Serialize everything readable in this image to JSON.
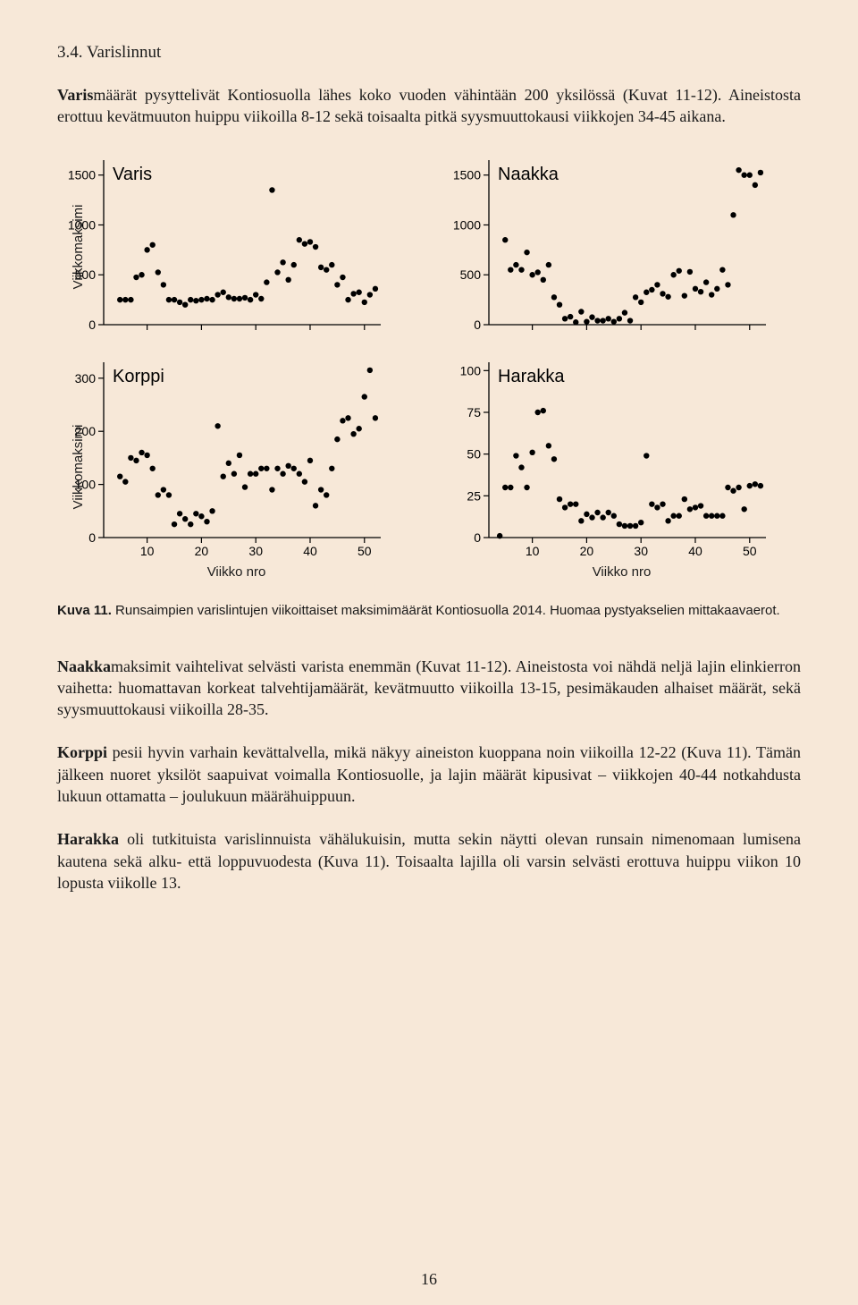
{
  "section_heading": "3.4. Varislinnut",
  "para1": "Varismäärät pysyttelivät Kontiosuolla lähes koko vuoden vähintään 200 yksilössä (Kuvat 11-12). Aineistosta erottuu kevätmuuton huippu viikoilla 8-12 sekä toisaalta pitkä syysmuuttokausi viikkojen 34-45 aikana.",
  "caption_bold": "Kuva 11.",
  "caption_rest": " Runsaimpien varislintujen viikoittaiset maksimimäärät Kontiosuolla 2014. Huomaa pystyakselien mittakaavaerot.",
  "para2": "Naakkamaksimit vaihtelivat selvästi varista enemmän (Kuvat 11-12). Aineistosta voi nähdä neljä lajin elinkierron vaihetta: huomattavan korkeat talvehtijamäärät, kevätmuutto viikoilla 13-15, pesimäkauden alhaiset määrät, sekä syysmuuttokausi viikoilla 28-35.",
  "para3": "Korppi pesii hyvin varhain kevättalvella, mikä näkyy aineiston kuoppana noin viikoilla 12-22 (Kuva 11). Tämän jälkeen nuoret yksilöt saapuivat voimalla Kontiosuolle, ja lajin määrät kipusivat – viikkojen 40-44 notkahdusta lukuun ottamatta – joulukuun määrähuippuun.",
  "para4": "Harakka oli tutkituista varislinnuista vähälukuisin, mutta sekin näytti olevan runsain nimenomaan lumisena kautena sekä alku- että loppuvuodesta (Kuva 11). Toisaalta lajilla oli varsin selvästi erottuva huippu viikon 10 lopusta viikolle 13.",
  "page_number": "16",
  "axis_y_label": "Viikkomaksimi",
  "axis_x_label": "Viikko nro",
  "charts": {
    "common": {
      "point_color": "#000000",
      "axis_color": "#000000",
      "tick_font": 14,
      "title_font": 20,
      "x_ticks": [
        10,
        20,
        30,
        40,
        50
      ],
      "xlim": [
        2,
        53
      ],
      "marker_radius": 3.2
    },
    "varis": {
      "title": "Varis",
      "y_ticks": [
        0,
        500,
        1000,
        1500
      ],
      "ylim": [
        0,
        1650
      ],
      "points": [
        [
          5,
          250
        ],
        [
          6,
          250
        ],
        [
          7,
          250
        ],
        [
          8,
          475
        ],
        [
          9,
          500
        ],
        [
          10,
          750
        ],
        [
          11,
          800
        ],
        [
          12,
          525
        ],
        [
          13,
          400
        ],
        [
          14,
          250
        ],
        [
          15,
          250
        ],
        [
          16,
          225
        ],
        [
          17,
          200
        ],
        [
          18,
          250
        ],
        [
          19,
          240
        ],
        [
          20,
          250
        ],
        [
          21,
          260
        ],
        [
          22,
          250
        ],
        [
          23,
          300
        ],
        [
          24,
          325
        ],
        [
          25,
          275
        ],
        [
          26,
          260
        ],
        [
          27,
          260
        ],
        [
          28,
          270
        ],
        [
          29,
          250
        ],
        [
          30,
          300
        ],
        [
          31,
          260
        ],
        [
          32,
          425
        ],
        [
          33,
          1350
        ],
        [
          34,
          525
        ],
        [
          35,
          625
        ],
        [
          36,
          450
        ],
        [
          37,
          600
        ],
        [
          38,
          850
        ],
        [
          39,
          810
        ],
        [
          40,
          830
        ],
        [
          41,
          780
        ],
        [
          42,
          575
        ],
        [
          43,
          550
        ],
        [
          44,
          600
        ],
        [
          45,
          400
        ],
        [
          46,
          475
        ],
        [
          47,
          250
        ],
        [
          48,
          310
        ],
        [
          49,
          325
        ],
        [
          50,
          225
        ],
        [
          51,
          300
        ],
        [
          52,
          360
        ]
      ]
    },
    "naakka": {
      "title": "Naakka",
      "y_ticks": [
        0,
        500,
        1000,
        1500
      ],
      "ylim": [
        0,
        1650
      ],
      "points": [
        [
          5,
          850
        ],
        [
          6,
          550
        ],
        [
          7,
          600
        ],
        [
          8,
          550
        ],
        [
          9,
          725
        ],
        [
          10,
          500
        ],
        [
          11,
          525
        ],
        [
          12,
          450
        ],
        [
          13,
          600
        ],
        [
          14,
          275
        ],
        [
          15,
          200
        ],
        [
          16,
          60
        ],
        [
          17,
          80
        ],
        [
          18,
          25
        ],
        [
          19,
          130
        ],
        [
          20,
          30
        ],
        [
          21,
          75
        ],
        [
          22,
          40
        ],
        [
          23,
          40
        ],
        [
          24,
          60
        ],
        [
          25,
          30
        ],
        [
          26,
          60
        ],
        [
          27,
          120
        ],
        [
          28,
          40
        ],
        [
          29,
          275
        ],
        [
          30,
          225
        ],
        [
          31,
          325
        ],
        [
          32,
          350
        ],
        [
          33,
          400
        ],
        [
          34,
          310
        ],
        [
          35,
          280
        ],
        [
          36,
          500
        ],
        [
          37,
          540
        ],
        [
          38,
          290
        ],
        [
          39,
          530
        ],
        [
          40,
          360
        ],
        [
          41,
          330
        ],
        [
          42,
          425
        ],
        [
          43,
          300
        ],
        [
          44,
          360
        ],
        [
          45,
          550
        ],
        [
          46,
          400
        ],
        [
          47,
          1100
        ],
        [
          48,
          1550
        ],
        [
          49,
          1500
        ],
        [
          50,
          1500
        ],
        [
          51,
          1400
        ],
        [
          52,
          1525
        ]
      ]
    },
    "korppi": {
      "title": "Korppi",
      "y_ticks": [
        0,
        100,
        200,
        300
      ],
      "ylim": [
        0,
        330
      ],
      "points": [
        [
          5,
          115
        ],
        [
          6,
          105
        ],
        [
          7,
          150
        ],
        [
          8,
          145
        ],
        [
          9,
          160
        ],
        [
          10,
          155
        ],
        [
          11,
          130
        ],
        [
          12,
          80
        ],
        [
          13,
          90
        ],
        [
          14,
          80
        ],
        [
          15,
          25
        ],
        [
          16,
          45
        ],
        [
          17,
          35
        ],
        [
          18,
          25
        ],
        [
          19,
          45
        ],
        [
          20,
          40
        ],
        [
          21,
          30
        ],
        [
          22,
          50
        ],
        [
          23,
          210
        ],
        [
          24,
          115
        ],
        [
          25,
          140
        ],
        [
          26,
          120
        ],
        [
          27,
          155
        ],
        [
          28,
          95
        ],
        [
          29,
          120
        ],
        [
          30,
          120
        ],
        [
          31,
          130
        ],
        [
          32,
          130
        ],
        [
          33,
          90
        ],
        [
          34,
          130
        ],
        [
          35,
          120
        ],
        [
          36,
          135
        ],
        [
          37,
          130
        ],
        [
          38,
          120
        ],
        [
          39,
          105
        ],
        [
          40,
          145
        ],
        [
          41,
          60
        ],
        [
          42,
          90
        ],
        [
          43,
          80
        ],
        [
          44,
          130
        ],
        [
          45,
          185
        ],
        [
          46,
          220
        ],
        [
          47,
          225
        ],
        [
          48,
          195
        ],
        [
          49,
          205
        ],
        [
          50,
          265
        ],
        [
          51,
          315
        ],
        [
          52,
          225
        ]
      ]
    },
    "harakka": {
      "title": "Harakka",
      "y_ticks": [
        0,
        25,
        50,
        75,
        100
      ],
      "ylim": [
        0,
        105
      ],
      "points": [
        [
          5,
          30
        ],
        [
          6,
          30
        ],
        [
          7,
          49
        ],
        [
          8,
          42
        ],
        [
          9,
          30
        ],
        [
          10,
          51
        ],
        [
          11,
          75
        ],
        [
          12,
          76
        ],
        [
          13,
          55
        ],
        [
          14,
          47
        ],
        [
          15,
          23
        ],
        [
          16,
          18
        ],
        [
          17,
          20
        ],
        [
          18,
          20
        ],
        [
          19,
          10
        ],
        [
          20,
          14
        ],
        [
          21,
          12
        ],
        [
          22,
          15
        ],
        [
          23,
          12
        ],
        [
          24,
          15
        ],
        [
          25,
          13
        ],
        [
          26,
          8
        ],
        [
          27,
          7
        ],
        [
          28,
          7
        ],
        [
          29,
          7
        ],
        [
          30,
          9
        ],
        [
          31,
          49
        ],
        [
          32,
          20
        ],
        [
          33,
          18
        ],
        [
          34,
          20
        ],
        [
          35,
          10
        ],
        [
          36,
          13
        ],
        [
          37,
          13
        ],
        [
          38,
          23
        ],
        [
          39,
          17
        ],
        [
          40,
          18
        ],
        [
          41,
          19
        ],
        [
          42,
          13
        ],
        [
          43,
          13
        ],
        [
          44,
          13
        ],
        [
          45,
          13
        ],
        [
          46,
          30
        ],
        [
          47,
          28
        ],
        [
          48,
          30
        ],
        [
          49,
          17
        ],
        [
          50,
          31
        ],
        [
          51,
          32
        ],
        [
          52,
          31
        ],
        [
          4,
          1
        ]
      ]
    }
  }
}
